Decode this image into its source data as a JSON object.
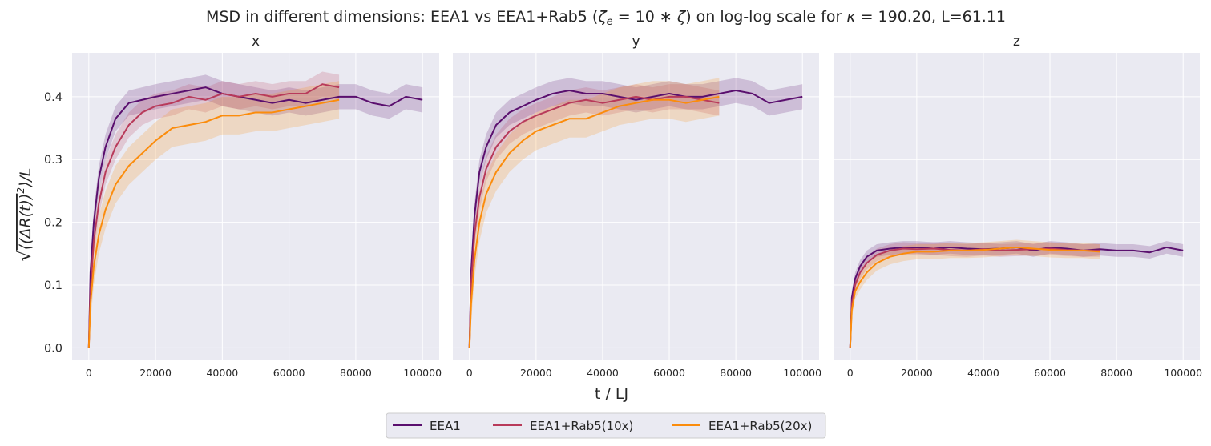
{
  "title": "MSD in different dimensions: EEA1 vs EEA1+Rab5 (ζₑ = 10 ∗ ζ) on log-log scale for κ = 190.20, L=61.11",
  "title_parts": {
    "a": "MSD in different dimensions: EEA1 vs EEA1+Rab5 (",
    "zeta": "ζ",
    "e": "e",
    "b": " = 10 ∗ ",
    "zeta2": "ζ",
    "c": ") on log-log scale for ",
    "kappa": "κ",
    "d": " = 190.20, L=61.11"
  },
  "xlabel": "t / LJ",
  "ylabel": "√⟨(ΔR(t))²⟩/L",
  "ylabel_parts": {
    "root": "√",
    "body": "⟨(ΔR(t))",
    "sup": "2",
    "rest": "⟩/L"
  },
  "colors": {
    "background": "#eaeaf2",
    "grid": "#ffffff",
    "EEA1": "#5a0f6e",
    "EEA1+Rab5(10x)": "#b83a5a",
    "EEA1+Rab5(20x)": "#fb8c0c"
  },
  "legend": {
    "placement": "bottom-center",
    "entries": [
      "EEA1",
      "EEA1+Rab5(10x)",
      "EEA1+Rab5(20x)"
    ]
  },
  "chart_data": [
    {
      "type": "line",
      "title": "x",
      "xlim": [
        -5000,
        105000
      ],
      "ylim": [
        -0.02,
        0.47
      ],
      "x_ticks": [
        "0",
        "20000",
        "40000",
        "60000",
        "80000",
        "100000"
      ],
      "y_ticks": [
        "0.0",
        "0.1",
        "0.2",
        "0.3",
        "0.4"
      ],
      "grid": true,
      "series": [
        {
          "name": "EEA1",
          "x": [
            0,
            500,
            1500,
            3000,
            5000,
            8000,
            12000,
            16000,
            20000,
            25000,
            30000,
            35000,
            40000,
            45000,
            50000,
            55000,
            60000,
            65000,
            70000,
            75000,
            80000,
            85000,
            90000,
            95000,
            100000
          ],
          "y": [
            0.0,
            0.12,
            0.2,
            0.27,
            0.32,
            0.365,
            0.39,
            0.395,
            0.4,
            0.405,
            0.41,
            0.415,
            0.405,
            0.4,
            0.395,
            0.39,
            0.395,
            0.39,
            0.395,
            0.4,
            0.4,
            0.39,
            0.385,
            0.4,
            0.395
          ],
          "band": 0.02
        },
        {
          "name": "EEA1+Rab5(10x)",
          "x": [
            0,
            500,
            1500,
            3000,
            5000,
            8000,
            12000,
            16000,
            20000,
            25000,
            30000,
            35000,
            40000,
            45000,
            50000,
            55000,
            60000,
            65000,
            70000,
            75000
          ],
          "y": [
            0.0,
            0.09,
            0.17,
            0.23,
            0.28,
            0.32,
            0.355,
            0.375,
            0.385,
            0.39,
            0.4,
            0.395,
            0.405,
            0.4,
            0.405,
            0.4,
            0.405,
            0.405,
            0.42,
            0.415
          ],
          "band": 0.02
        },
        {
          "name": "EEA1+Rab5(20x)",
          "x": [
            0,
            500,
            1500,
            3000,
            5000,
            8000,
            12000,
            16000,
            20000,
            25000,
            30000,
            35000,
            40000,
            45000,
            50000,
            55000,
            60000,
            65000,
            70000,
            75000
          ],
          "y": [
            0.0,
            0.07,
            0.13,
            0.18,
            0.22,
            0.26,
            0.29,
            0.31,
            0.33,
            0.35,
            0.355,
            0.36,
            0.37,
            0.37,
            0.375,
            0.375,
            0.38,
            0.385,
            0.39,
            0.395
          ],
          "band": 0.03
        }
      ]
    },
    {
      "type": "line",
      "title": "y",
      "xlim": [
        -5000,
        105000
      ],
      "ylim": [
        -0.02,
        0.47
      ],
      "x_ticks": [
        "0",
        "20000",
        "40000",
        "60000",
        "80000",
        "100000"
      ],
      "y_ticks": [
        "0.0",
        "0.1",
        "0.2",
        "0.3",
        "0.4"
      ],
      "grid": true,
      "series": [
        {
          "name": "EEA1",
          "x": [
            0,
            500,
            1500,
            3000,
            5000,
            8000,
            12000,
            16000,
            20000,
            25000,
            30000,
            35000,
            40000,
            45000,
            50000,
            55000,
            60000,
            65000,
            70000,
            75000,
            80000,
            85000,
            90000,
            95000,
            100000
          ],
          "y": [
            0.0,
            0.12,
            0.21,
            0.28,
            0.32,
            0.355,
            0.375,
            0.385,
            0.395,
            0.405,
            0.41,
            0.405,
            0.405,
            0.4,
            0.395,
            0.4,
            0.405,
            0.4,
            0.4,
            0.405,
            0.41,
            0.405,
            0.39,
            0.395,
            0.4
          ],
          "band": 0.02
        },
        {
          "name": "EEA1+Rab5(10x)",
          "x": [
            0,
            500,
            1500,
            3000,
            5000,
            8000,
            12000,
            16000,
            20000,
            25000,
            30000,
            35000,
            40000,
            45000,
            50000,
            55000,
            60000,
            65000,
            70000,
            75000
          ],
          "y": [
            0.0,
            0.1,
            0.18,
            0.24,
            0.285,
            0.32,
            0.345,
            0.36,
            0.37,
            0.38,
            0.39,
            0.395,
            0.39,
            0.395,
            0.4,
            0.395,
            0.4,
            0.4,
            0.395,
            0.39
          ],
          "band": 0.02
        },
        {
          "name": "EEA1+Rab5(20x)",
          "x": [
            0,
            500,
            1500,
            3000,
            5000,
            8000,
            12000,
            16000,
            20000,
            25000,
            30000,
            35000,
            40000,
            45000,
            50000,
            55000,
            60000,
            65000,
            70000,
            75000
          ],
          "y": [
            0.0,
            0.07,
            0.14,
            0.2,
            0.245,
            0.28,
            0.31,
            0.33,
            0.345,
            0.355,
            0.365,
            0.365,
            0.375,
            0.385,
            0.39,
            0.395,
            0.395,
            0.39,
            0.395,
            0.4
          ],
          "band": 0.03
        }
      ]
    },
    {
      "type": "line",
      "title": "z",
      "xlim": [
        -5000,
        105000
      ],
      "ylim": [
        -0.02,
        0.47
      ],
      "x_ticks": [
        "0",
        "20000",
        "40000",
        "60000",
        "80000",
        "100000"
      ],
      "y_ticks": [
        "0.0",
        "0.1",
        "0.2",
        "0.3",
        "0.4"
      ],
      "grid": true,
      "series": [
        {
          "name": "EEA1",
          "x": [
            0,
            500,
            1500,
            3000,
            5000,
            8000,
            12000,
            16000,
            20000,
            25000,
            30000,
            35000,
            40000,
            45000,
            50000,
            55000,
            60000,
            65000,
            70000,
            75000,
            80000,
            85000,
            90000,
            95000,
            100000
          ],
          "y": [
            0.0,
            0.08,
            0.11,
            0.13,
            0.145,
            0.155,
            0.158,
            0.16,
            0.16,
            0.158,
            0.16,
            0.158,
            0.157,
            0.158,
            0.16,
            0.155,
            0.16,
            0.158,
            0.155,
            0.157,
            0.155,
            0.155,
            0.152,
            0.16,
            0.155
          ],
          "band": 0.01
        },
        {
          "name": "EEA1+Rab5(10x)",
          "x": [
            0,
            500,
            1500,
            3000,
            5000,
            8000,
            12000,
            16000,
            20000,
            25000,
            30000,
            35000,
            40000,
            45000,
            50000,
            55000,
            60000,
            65000,
            70000,
            75000
          ],
          "y": [
            0.0,
            0.07,
            0.1,
            0.12,
            0.135,
            0.148,
            0.155,
            0.158,
            0.157,
            0.158,
            0.156,
            0.155,
            0.157,
            0.155,
            0.156,
            0.157,
            0.158,
            0.156,
            0.155,
            0.155
          ],
          "band": 0.01
        },
        {
          "name": "EEA1+Rab5(20x)",
          "x": [
            0,
            500,
            1500,
            3000,
            5000,
            8000,
            12000,
            16000,
            20000,
            25000,
            30000,
            35000,
            40000,
            45000,
            50000,
            55000,
            60000,
            65000,
            70000,
            75000
          ],
          "y": [
            0.0,
            0.06,
            0.09,
            0.105,
            0.12,
            0.135,
            0.145,
            0.15,
            0.153,
            0.153,
            0.155,
            0.155,
            0.156,
            0.158,
            0.16,
            0.158,
            0.156,
            0.155,
            0.155,
            0.153
          ],
          "band": 0.012
        }
      ]
    }
  ]
}
